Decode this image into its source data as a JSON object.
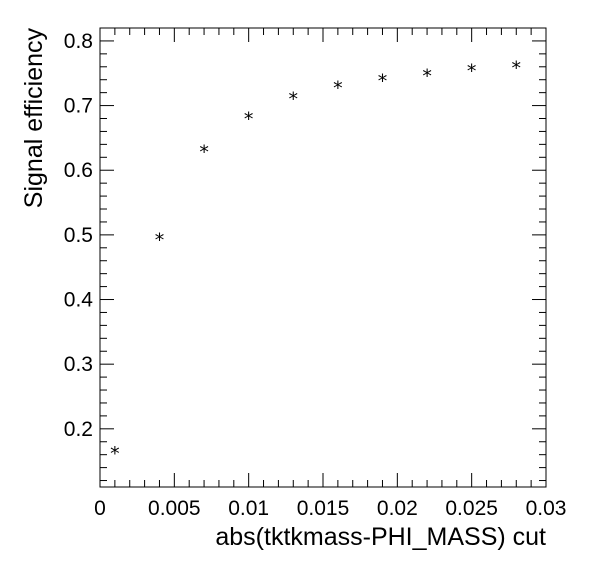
{
  "chart_data": {
    "type": "scatter",
    "xlabel": "abs(tktkmass-PHI_MASS) cut",
    "ylabel": "Signal efficiency",
    "xlim": [
      0,
      0.03
    ],
    "ylim": [
      0.11,
      0.82
    ],
    "x_ticks": [
      0,
      0.005,
      0.01,
      0.015,
      0.02,
      0.025,
      0.03
    ],
    "x_tick_labels": [
      "0",
      "0.005",
      "0.01",
      "0.015",
      "0.02",
      "0.025",
      "0.03"
    ],
    "y_ticks": [
      0.2,
      0.3,
      0.4,
      0.5,
      0.6,
      0.7,
      0.8
    ],
    "y_tick_labels": [
      "0.2",
      "0.3",
      "0.4",
      "0.5",
      "0.6",
      "0.7",
      "0.8"
    ],
    "marker": "*",
    "marker_color": "#000000",
    "grid": false,
    "series": [
      {
        "x": [
          0.001,
          0.004,
          0.007,
          0.01,
          0.013,
          0.016,
          0.019,
          0.022,
          0.025,
          0.028
        ],
        "y": [
          0.166,
          0.496,
          0.632,
          0.683,
          0.714,
          0.731,
          0.742,
          0.75,
          0.757,
          0.762
        ]
      }
    ]
  }
}
